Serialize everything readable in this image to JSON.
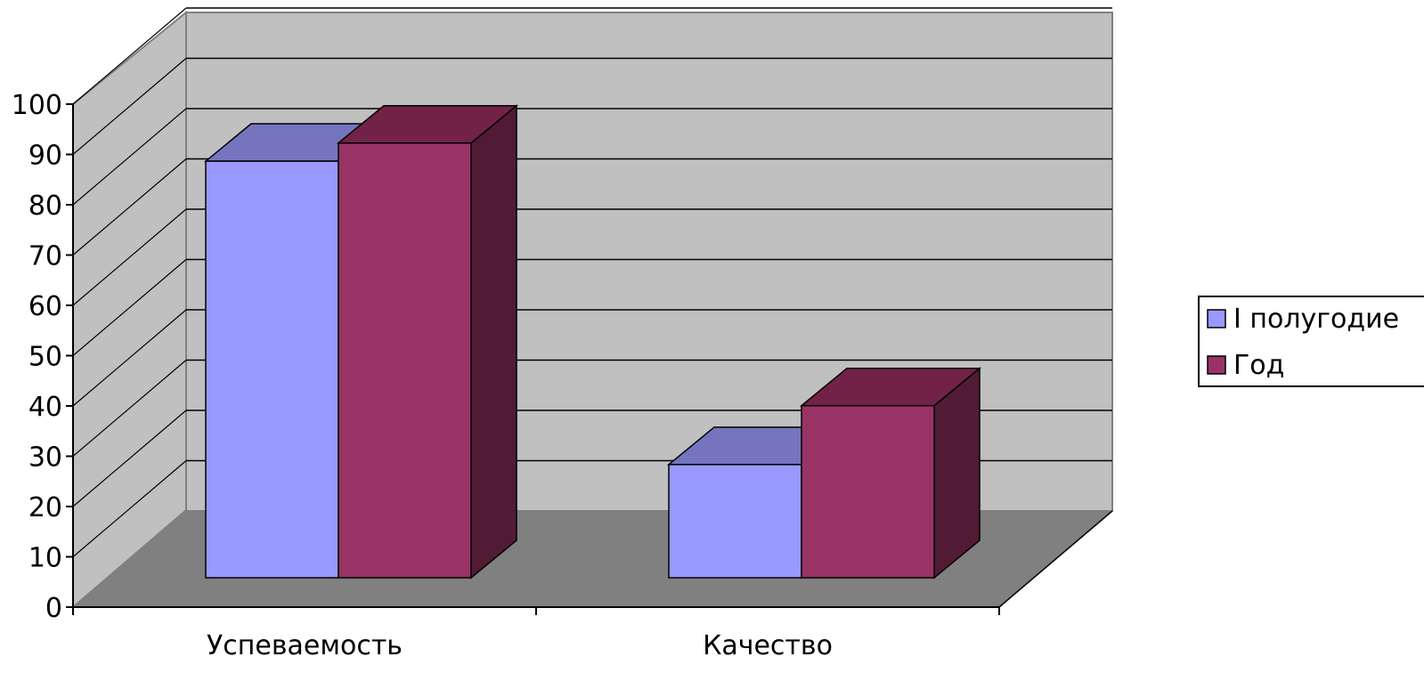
{
  "chart_data": {
    "type": "bar",
    "categories": [
      "Успеваемость",
      "Качество"
    ],
    "series": [
      {
        "name": "I полугодие",
        "values": [
          92,
          25
        ],
        "color": "#9999ff"
      },
      {
        "name": "Год",
        "values": [
          96,
          38
        ],
        "color": "#993366"
      }
    ],
    "y_ticks": [
      "0",
      "10",
      "20",
      "30",
      "40",
      "50",
      "60",
      "70",
      "80",
      "90",
      "100"
    ],
    "ylim": [
      0,
      100
    ],
    "grid": true,
    "legend_position": "right",
    "style": "3d",
    "colors": {
      "back_wall": "#c0c0c0",
      "floor": "#808080",
      "bar_side_series2": "#521b35",
      "bar_top_series1": "#7575bf",
      "bar_top_series2": "#722247"
    }
  }
}
